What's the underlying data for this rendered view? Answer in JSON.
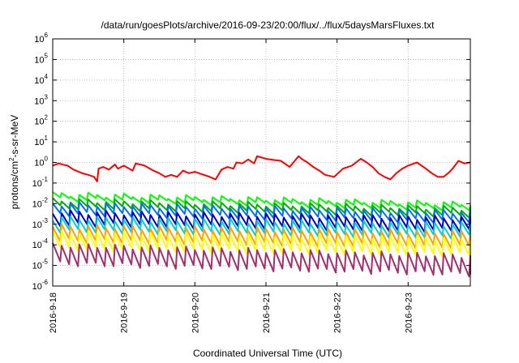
{
  "chart_data": {
    "type": "line",
    "title": "/data/run/goesPlots/archive/2016-09-23/20:00/flux/../flux/5daysMarsFluxes.txt",
    "xlabel": "Coordinated Universal Time (UTC)",
    "ylabel_parts": {
      "base": "protons/cm",
      "sup": "2",
      "rest": "-s-sr-MeV"
    },
    "xscale": "time",
    "yscale": "log",
    "xlim": [
      "2016-09-18",
      "2016-09-23T21:00"
    ],
    "ylim": [
      1e-06,
      1000000.0
    ],
    "grid": true,
    "x_ticks": [
      "2016-9-18",
      "2016-9-19",
      "2016-9-20",
      "2016-9-21",
      "2016-9-22",
      "2016-9-23"
    ],
    "y_ticks": [
      {
        "base": "10",
        "exp": "-6"
      },
      {
        "base": "10",
        "exp": "-5"
      },
      {
        "base": "10",
        "exp": "-4"
      },
      {
        "base": "10",
        "exp": "-3"
      },
      {
        "base": "10",
        "exp": "-2"
      },
      {
        "base": "10",
        "exp": "-1"
      },
      {
        "base": "10",
        "exp": "0"
      },
      {
        "base": "10",
        "exp": "1"
      },
      {
        "base": "10",
        "exp": "2"
      },
      {
        "base": "10",
        "exp": "3"
      },
      {
        "base": "10",
        "exp": "4"
      },
      {
        "base": "10",
        "exp": "5"
      },
      {
        "base": "10",
        "exp": "6"
      }
    ],
    "series": [
      {
        "color": "#ff0000",
        "x": [
          "2016-09-18T00:00",
          "2016-09-18T02:00",
          "2016-09-18T04:00",
          "2016-09-18T05:00",
          "2016-09-18T07:00",
          "2016-09-18T10:00",
          "2016-09-18T12:00",
          "2016-09-18T14:00",
          "2016-09-18T15:00",
          "2016-09-18T15:30",
          "2016-09-18T17:00",
          "2016-09-18T19:00",
          "2016-09-18T21:00",
          "2016-09-18T22:00",
          "2016-09-19T00:00",
          "2016-09-19T03:00",
          "2016-09-19T04:00",
          "2016-09-19T07:00",
          "2016-09-19T10:00",
          "2016-09-19T12:00",
          "2016-09-19T14:00",
          "2016-09-19T16:00",
          "2016-09-19T18:00",
          "2016-09-19T20:00",
          "2016-09-19T22:00",
          "2016-09-20T00:00",
          "2016-09-20T03:00",
          "2016-09-20T05:00",
          "2016-09-20T07:00",
          "2016-09-20T09:00",
          "2016-09-20T11:00",
          "2016-09-20T13:00",
          "2016-09-20T14:00",
          "2016-09-20T16:00",
          "2016-09-20T18:00",
          "2016-09-20T20:00",
          "2016-09-20T21:00",
          "2016-09-21T00:00",
          "2016-09-21T03:00",
          "2016-09-21T05:00",
          "2016-09-21T08:00",
          "2016-09-21T11:00",
          "2016-09-21T12:00",
          "2016-09-21T14:00",
          "2016-09-21T16:00",
          "2016-09-21T18:00",
          "2016-09-21T20:00",
          "2016-09-21T23:00",
          "2016-09-22T02:00",
          "2016-09-22T05:00",
          "2016-09-22T08:00",
          "2016-09-22T10:00",
          "2016-09-22T12:00",
          "2016-09-22T14:00",
          "2016-09-22T16:00",
          "2016-09-22T18:00",
          "2016-09-22T20:00",
          "2016-09-22T22:00",
          "2016-09-23T00:00",
          "2016-09-23T03:00",
          "2016-09-23T06:00",
          "2016-09-23T08:00",
          "2016-09-23T10:00",
          "2016-09-23T12:00",
          "2016-09-23T14:00",
          "2016-09-23T15:00",
          "2016-09-23T17:00",
          "2016-09-23T19:00",
          "2016-09-23T21:00"
        ],
        "values": [
          0.7,
          0.9,
          0.75,
          0.7,
          0.45,
          0.3,
          0.25,
          0.2,
          0.12,
          0.5,
          0.6,
          0.45,
          0.8,
          0.5,
          0.7,
          0.4,
          0.9,
          0.7,
          0.4,
          0.3,
          0.2,
          0.25,
          0.2,
          0.4,
          0.3,
          0.35,
          0.25,
          0.2,
          0.15,
          0.45,
          0.6,
          0.5,
          1.0,
          0.9,
          1.4,
          0.9,
          2.0,
          1.5,
          1.3,
          1.2,
          0.6,
          2.0,
          1.5,
          1.0,
          0.6,
          0.4,
          0.25,
          0.2,
          0.5,
          0.7,
          1.5,
          1.0,
          0.6,
          0.3,
          0.2,
          0.15,
          0.3,
          0.5,
          0.7,
          1.0,
          0.5,
          0.3,
          0.2,
          0.2,
          0.35,
          0.5,
          1.2,
          0.9,
          1.0
        ]
      },
      {
        "color": "#00ff00",
        "x": [
          "2016-09-18T00:00",
          "2016-09-23T21:00"
        ],
        "values": [
          0.03,
          0.01
        ],
        "period_hours": 3,
        "amp": 1.8
      },
      {
        "color": "#00b000",
        "x": [
          "2016-09-18T00:00",
          "2016-09-23T21:00"
        ],
        "values": [
          0.015,
          0.006
        ],
        "period_hours": 3,
        "amp": 2.2
      },
      {
        "color": "#0070ff",
        "x": [
          "2016-09-18T00:00",
          "2016-09-23T21:00"
        ],
        "values": [
          0.01,
          0.004
        ],
        "period_hours": 3,
        "amp": 3.0
      },
      {
        "color": "#0000c0",
        "x": [
          "2016-09-18T00:00",
          "2016-09-23T21:00"
        ],
        "values": [
          0.004,
          0.002
        ],
        "period_hours": 3,
        "amp": 4.0
      },
      {
        "color": "#00d0d0",
        "x": [
          "2016-09-18T00:00",
          "2016-09-23T21:00"
        ],
        "values": [
          0.002,
          0.001
        ],
        "period_hours": 3,
        "amp": 4.0
      },
      {
        "color": "#ffa000",
        "x": [
          "2016-09-18T00:00",
          "2016-09-23T21:00"
        ],
        "values": [
          0.0008,
          0.0004
        ],
        "period_hours": 3,
        "amp": 5.0
      },
      {
        "color": "#ffff00",
        "x": [
          "2016-09-18T00:00",
          "2016-09-23T21:00"
        ],
        "values": [
          0.0004,
          0.0002
        ],
        "period_hours": 3,
        "amp": 6.0
      },
      {
        "color": "#a03070",
        "x": [
          "2016-09-18T00:00",
          "2016-09-23T21:00"
        ],
        "values": [
          0.0001,
          3e-05
        ],
        "period_hours": 3,
        "amp": 8.0
      }
    ]
  }
}
